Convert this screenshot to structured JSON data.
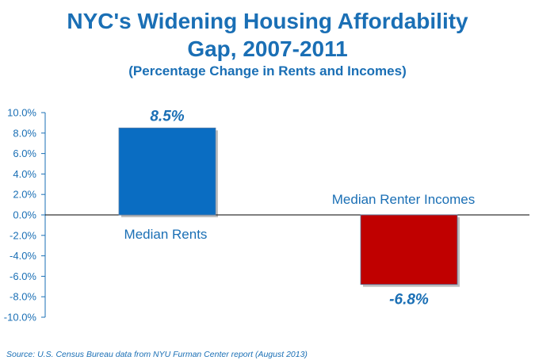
{
  "chart_data": {
    "type": "bar",
    "title_line1": "NYC's Widening Housing Affordability",
    "title_line2": "Gap, 2007-2011",
    "subtitle": "(Percentage Change in Rents and Incomes)",
    "categories": [
      "Median Rents",
      "Median Renter Incomes"
    ],
    "values": [
      8.5,
      -6.8
    ],
    "data_labels": [
      "8.5%",
      "-6.8%"
    ],
    "bar_colors": [
      "#0a6dc2",
      "#c00000"
    ],
    "ylim": [
      -10,
      10
    ],
    "yticks": [
      10,
      8,
      6,
      4,
      2,
      0,
      -2,
      -4,
      -6,
      -8,
      -10
    ],
    "ytick_labels": [
      "10.0%",
      "8.0%",
      "6.0%",
      "4.0%",
      "2.0%",
      "0.0%",
      "-2.0%",
      "-4.0%",
      "-6.0%",
      "-8.0%",
      "-10.0%"
    ],
    "xlabel": "",
    "ylabel": "",
    "grid": false,
    "legend": "none"
  },
  "source": "Source:  U.S. Census Bureau data from NYU Furman Center report (August 2013)",
  "colors": {
    "text_accent": "#1a6fb5",
    "axis": "#1a6fb5",
    "zero_line": "#000000"
  }
}
